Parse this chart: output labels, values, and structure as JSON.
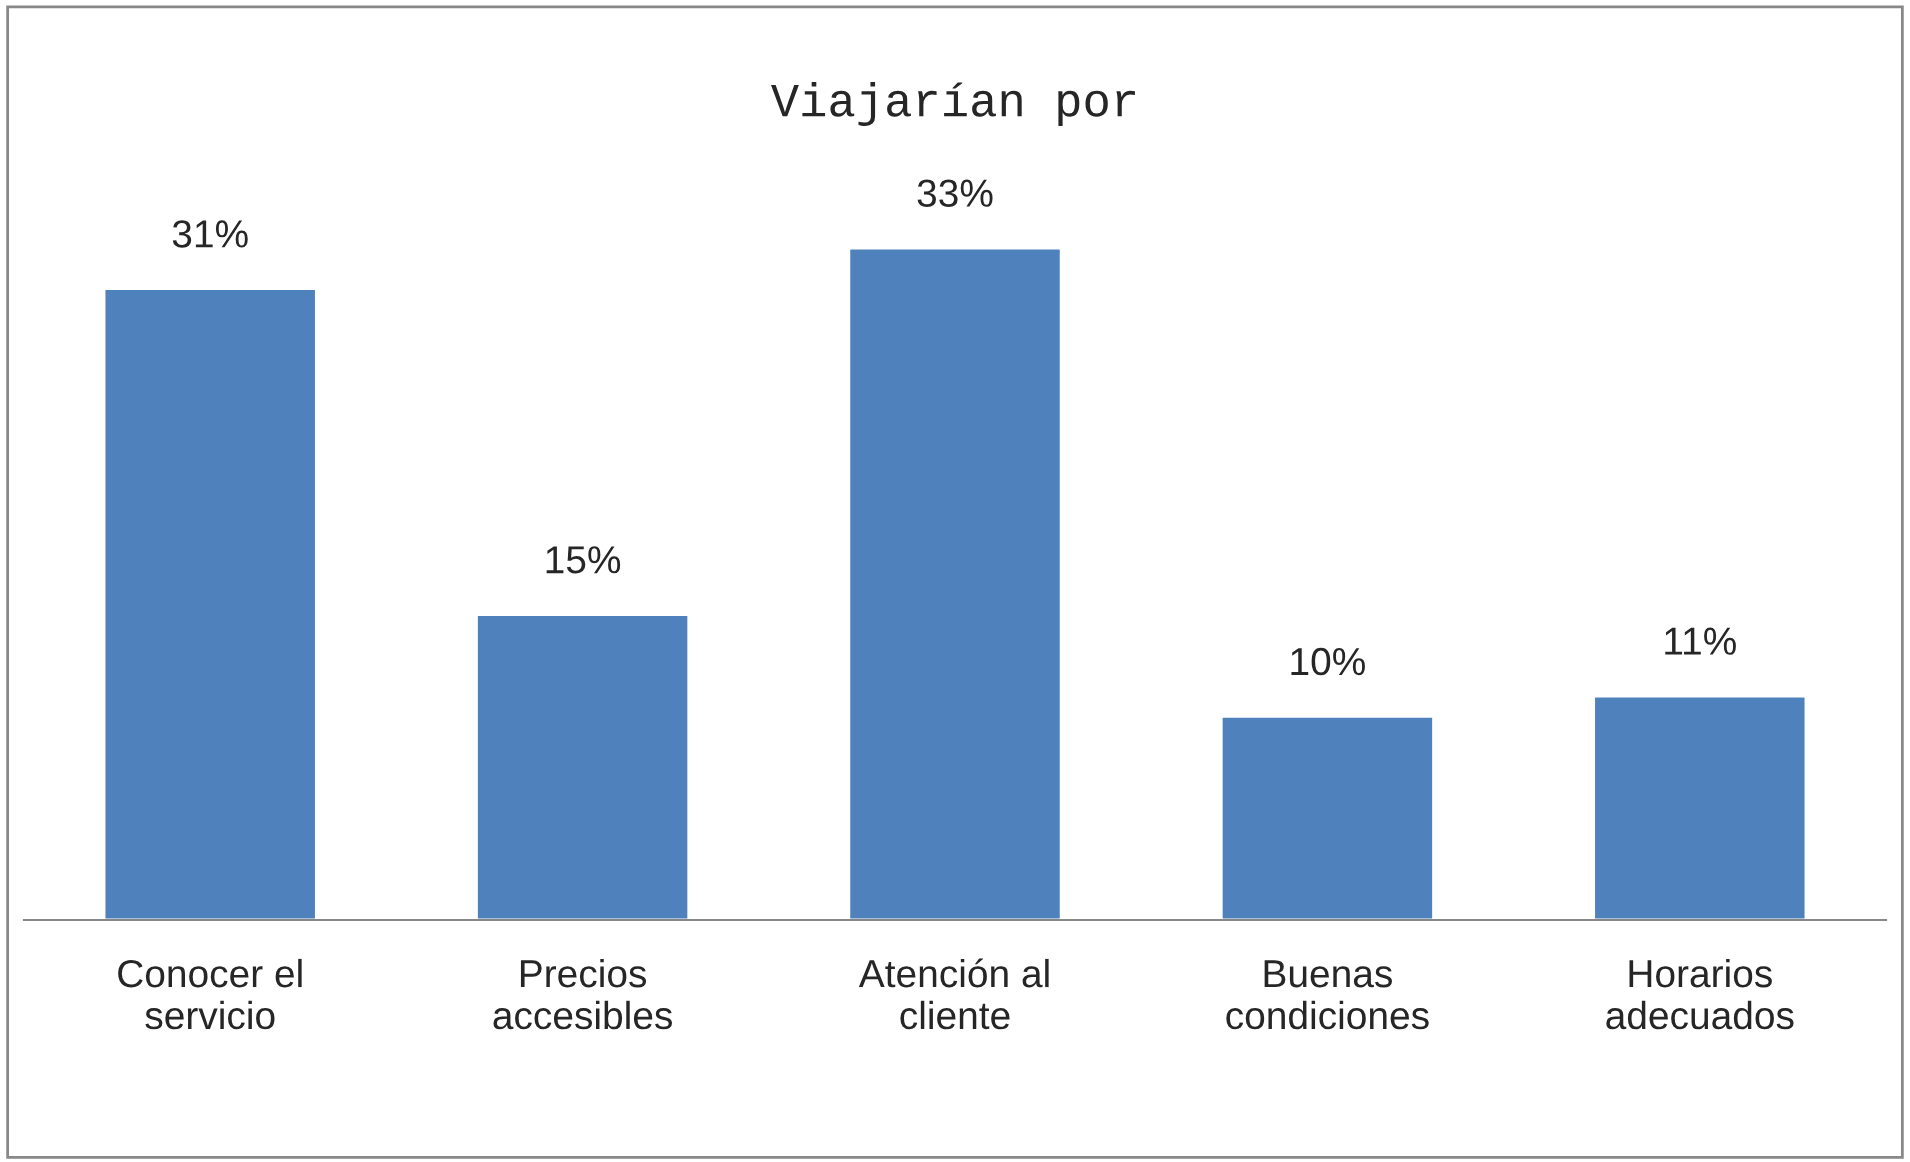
{
  "chart_data": {
    "type": "bar",
    "title": "Viajarían por",
    "categories": [
      "Conocer el servicio",
      "Precios accesibles",
      "Atención al cliente",
      "Buenas condiciones",
      "Horarios adecuados"
    ],
    "values": [
      31,
      15,
      33,
      10,
      11
    ],
    "value_labels": [
      "31%",
      "15%",
      "33%",
      "10%",
      "11%"
    ],
    "color": "#4f81bd",
    "tick_labels": "x"
  }
}
